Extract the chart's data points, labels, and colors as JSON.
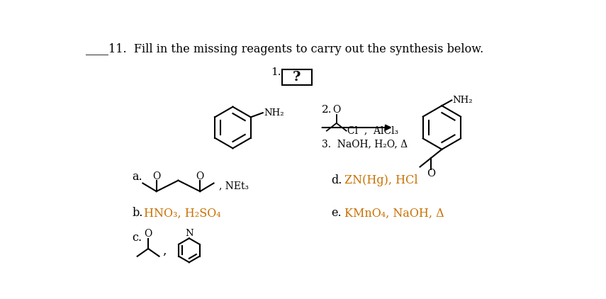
{
  "background": "#ffffff",
  "title": "____11.  Fill in the missing reagents to carry out the synthesis below.",
  "label_a": "a.",
  "label_b_text": "HNO₃, H₂SO₄",
  "label_b_prefix": "b.",
  "label_b_color": "#c87000",
  "label_c": "c.",
  "label_d_prefix": "d.",
  "label_d_text": "ZN(Hg), HCl",
  "label_d_color": "#c87000",
  "label_e_prefix": "e.",
  "label_e_text": "KMnO₄, NaOH, Δ",
  "label_e_color": "#c87000",
  "net3": ", NEt₃",
  "step1": "1.",
  "step2": "2.",
  "step3": "3.  NaOH, H₂O, Δ",
  "cl_alcl3": "Cl  ,  AlCl₃",
  "nh2": "NH₂"
}
